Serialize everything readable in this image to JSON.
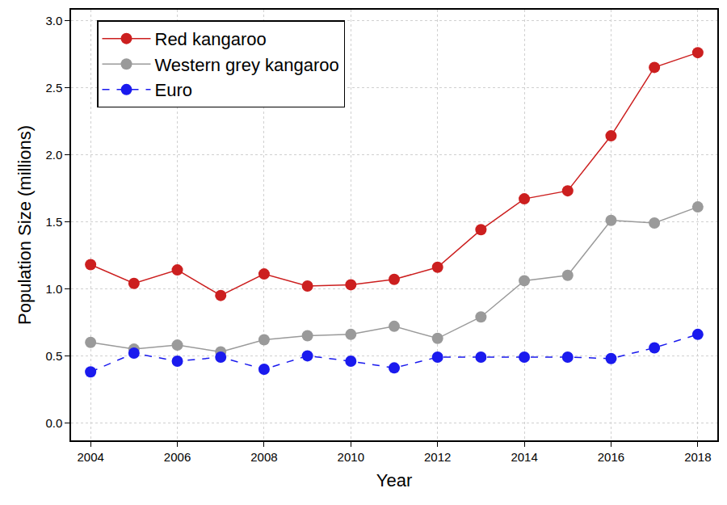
{
  "chart_data": {
    "type": "line",
    "x_label": "Year",
    "y_label": "Population Size (millions)",
    "x": [
      2004,
      2005,
      2006,
      2007,
      2008,
      2009,
      2010,
      2011,
      2012,
      2013,
      2014,
      2015,
      2016,
      2017,
      2018
    ],
    "series": [
      {
        "name": "Red kangaroo",
        "color": "#cc1f1f",
        "marker": "circle",
        "line_style": "solid",
        "values": [
          1.18,
          1.04,
          1.14,
          0.95,
          1.11,
          1.02,
          1.03,
          1.07,
          1.16,
          1.44,
          1.67,
          1.73,
          2.14,
          2.65,
          2.76
        ]
      },
      {
        "name": "Western grey kangaroo",
        "color": "#9a9a9a",
        "marker": "circle",
        "line_style": "solid",
        "values": [
          0.6,
          0.55,
          0.58,
          0.53,
          0.62,
          0.65,
          0.66,
          0.72,
          0.63,
          0.79,
          1.06,
          1.1,
          1.51,
          1.49,
          1.61
        ]
      },
      {
        "name": "Euro",
        "color": "#1a1aee",
        "marker": "circle",
        "line_style": "dashed",
        "values": [
          0.38,
          0.52,
          0.46,
          0.49,
          0.4,
          0.5,
          0.46,
          0.41,
          0.49,
          0.49,
          0.49,
          0.49,
          0.48,
          0.56,
          0.66
        ]
      }
    ],
    "xlim": [
      2003.55,
      2018.45
    ],
    "xticks": [
      2004,
      2006,
      2008,
      2010,
      2012,
      2014,
      2016,
      2018
    ],
    "ylim": [
      -0.13,
      3.08
    ],
    "yticks": [
      {
        "value": 0,
        "label": "0.0"
      },
      0.5,
      {
        "value": 1,
        "label": "1.0"
      },
      1.5,
      {
        "value": 2,
        "label": "2.0"
      },
      2.5,
      {
        "value": 3,
        "label": "3.0"
      }
    ],
    "grid": true,
    "legend": "upper left"
  }
}
